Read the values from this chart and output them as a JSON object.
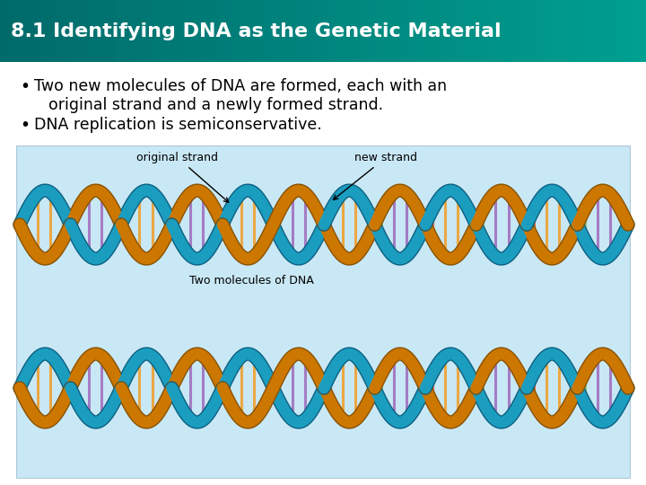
{
  "title": "8.1 Identifying DNA as the Genetic Material",
  "title_bg_color1": "#006B6B",
  "title_bg_color2": "#008080",
  "title_text_color": "#FFFFFF",
  "title_fontsize": 16,
  "body_bg_color": "#FFFFFF",
  "bullet1_line1": "Two new molecules of DNA are formed, each with an",
  "bullet1_line2": "original strand and a newly formed strand.",
  "bullet2": "DNA replication is semiconservative.",
  "bullet_fontsize": 12.5,
  "diagram_bg_color": "#C9E8F5",
  "label_original": "original strand",
  "label_new": "new strand",
  "label_two_mol": "Two molecules of DNA",
  "label_fontsize": 9,
  "strand1_color": "#1B9DC0",
  "strand2_color": "#CC7700",
  "strand1_dark": "#0D6080",
  "strand2_dark": "#885200",
  "rung_colors": [
    "#E86030",
    "#F0A030",
    "#C8B060",
    "#80C870",
    "#A070C0",
    "#60C0D0"
  ],
  "n_cycles": 6,
  "amplitude": 38,
  "lw_main": 9,
  "lw_edge": 11
}
